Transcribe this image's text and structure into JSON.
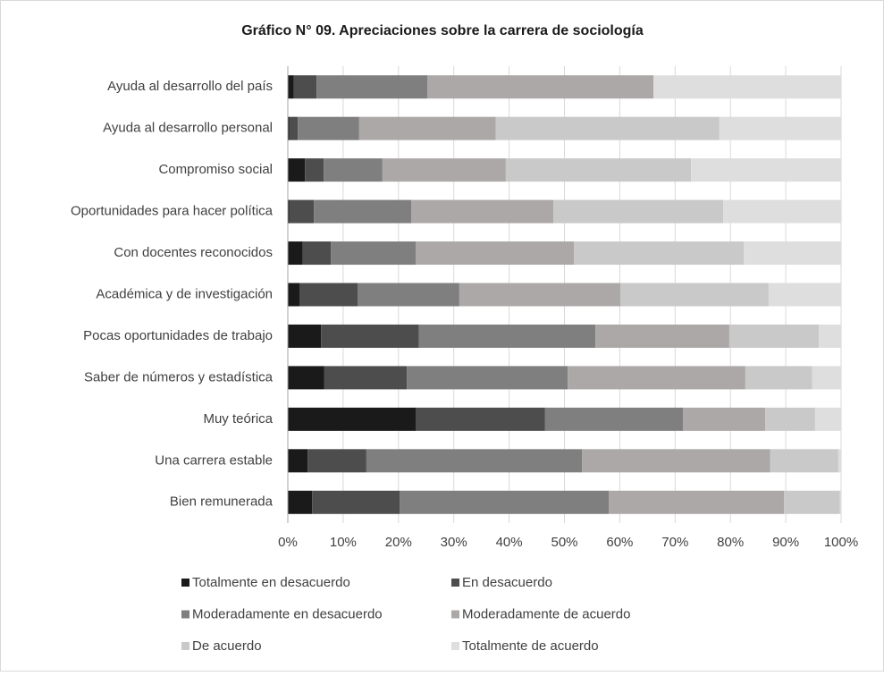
{
  "chart_data": {
    "type": "stacked-bar-horizontal",
    "title": "Gráfico N° 09. Apreciaciones sobre la carrera de sociología",
    "categories": [
      "Ayuda al desarrollo del país",
      "Ayuda al desarrollo personal",
      "Compromiso social",
      "Oportunidades para hacer política",
      "Con docentes reconocidos",
      "Académica y de investigación",
      "Pocas oportunidades de trabajo",
      "Saber de números y estadística",
      "Muy teórica",
      "Una carrera estable",
      "Bien remunerada"
    ],
    "series": [
      {
        "name": "Totalmente en desacuerdo",
        "color": "#1a1a1a",
        "values": [
          1.1,
          0.3,
          3.1,
          0.3,
          2.7,
          2.1,
          6.0,
          6.6,
          23.1,
          3.6,
          4.4
        ]
      },
      {
        "name": "En desacuerdo",
        "color": "#4d4d4d",
        "values": [
          4.1,
          1.5,
          3.4,
          4.4,
          5.1,
          10.5,
          17.7,
          14.9,
          23.4,
          10.6,
          15.8
        ]
      },
      {
        "name": "Moderadamente en desacuerdo",
        "color": "#7f7f7f",
        "values": [
          20.0,
          11.1,
          10.6,
          17.6,
          15.3,
          18.4,
          31.9,
          29.1,
          24.9,
          39.0,
          37.8
        ]
      },
      {
        "name": "Moderadamente de acuerdo",
        "color": "#aca8a7",
        "values": [
          40.9,
          24.7,
          22.3,
          25.7,
          28.6,
          29.1,
          24.2,
          32.1,
          14.9,
          34.0,
          31.7
        ]
      },
      {
        "name": "De acuerdo",
        "color": "#c9c9c9",
        "values": [
          0,
          40.4,
          33.5,
          30.7,
          30.7,
          26.8,
          16.2,
          12.1,
          9.0,
          12.3,
          10.1
        ]
      },
      {
        "name": "Totalmente de acuerdo",
        "color": "#dedede",
        "values": [
          33.9,
          22.0,
          27.1,
          21.3,
          17.6,
          13.1,
          4.0,
          5.2,
          4.7,
          0.5,
          0.2
        ]
      }
    ],
    "xlim": [
      0,
      100
    ],
    "xticks": [
      {
        "value": 0,
        "label": "0%"
      },
      {
        "value": 10,
        "label": "10%"
      },
      {
        "value": 20,
        "label": "20%"
      },
      {
        "value": 30,
        "label": "30%"
      },
      {
        "value": 40,
        "label": "40%"
      },
      {
        "value": 50,
        "label": "50%"
      },
      {
        "value": 60,
        "label": "60%"
      },
      {
        "value": 70,
        "label": "70%"
      },
      {
        "value": 80,
        "label": "80%"
      },
      {
        "value": 90,
        "label": "90%"
      },
      {
        "value": 100,
        "label": "100%"
      }
    ],
    "grid": true
  }
}
